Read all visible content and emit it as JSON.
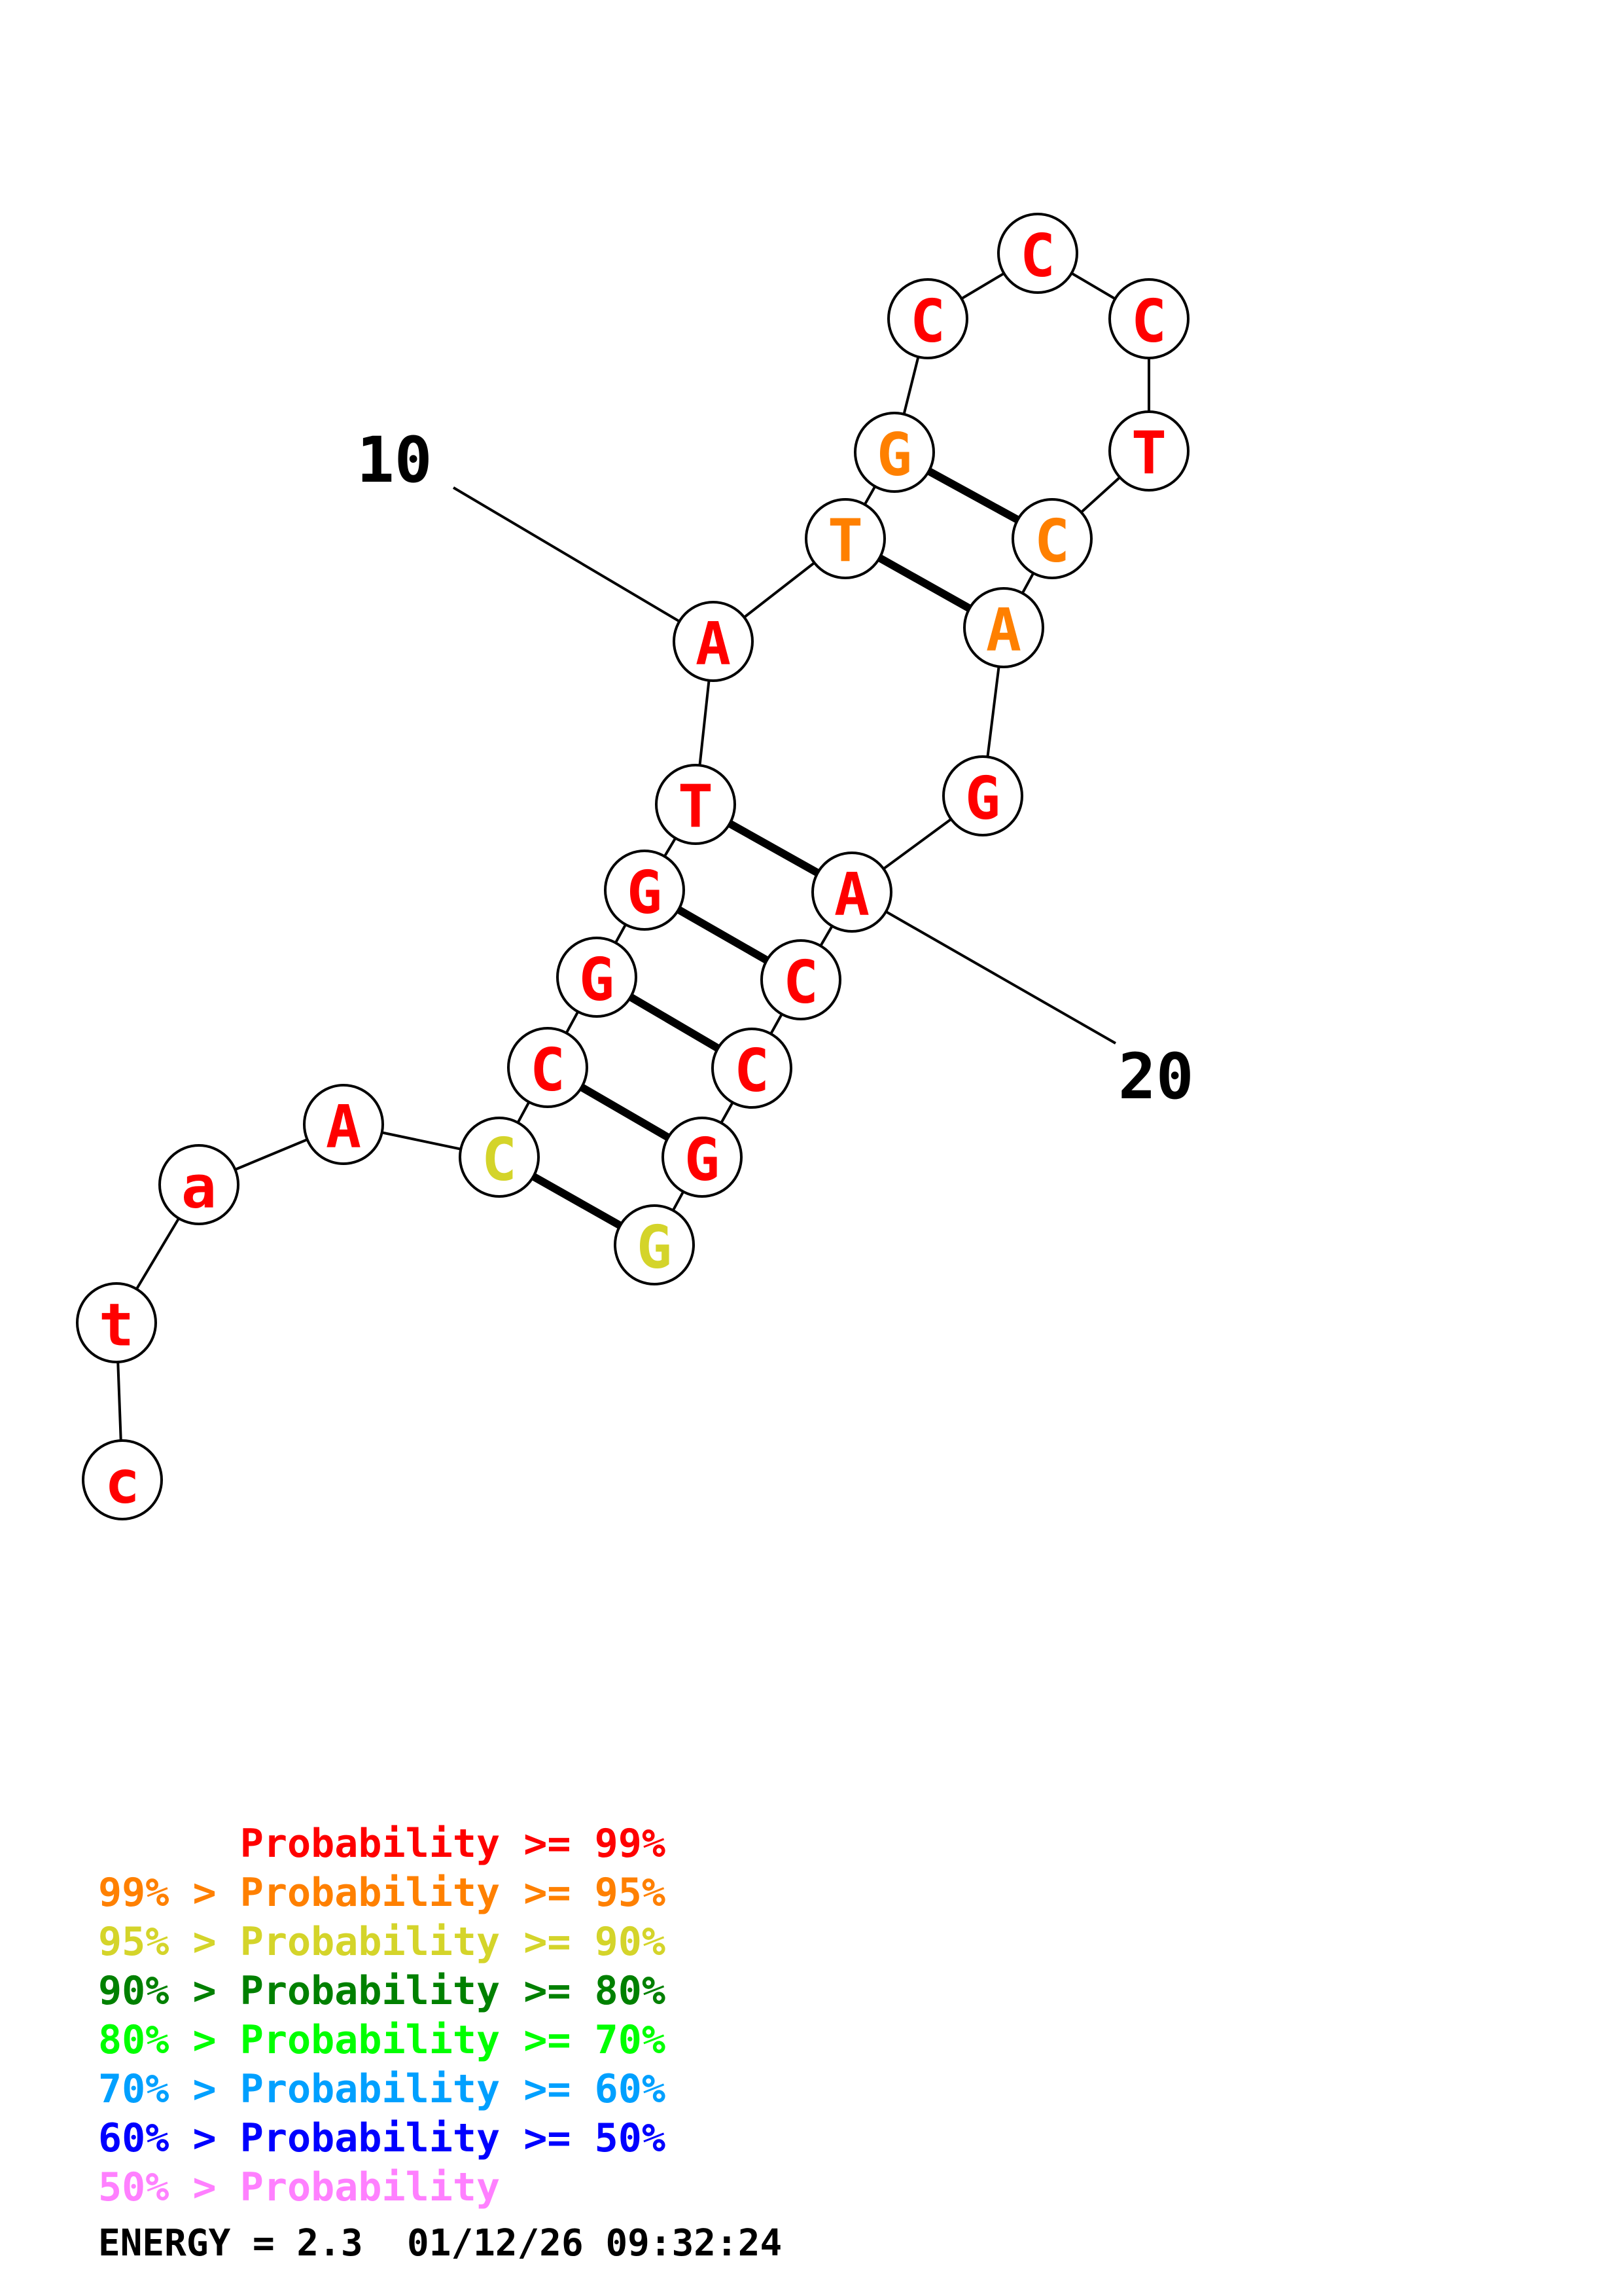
{
  "nucleotides": [
    {
      "label": "c",
      "color": "#ff0000"
    },
    {
      "label": "t",
      "color": "#ff0000"
    },
    {
      "label": "a",
      "color": "#ff0000"
    },
    {
      "label": "A",
      "color": "#ff0000"
    },
    {
      "label": "C",
      "color": "#d4d42a"
    },
    {
      "label": "C",
      "color": "#ff0000"
    },
    {
      "label": "G",
      "color": "#ff0000"
    },
    {
      "label": "G",
      "color": "#ff0000"
    },
    {
      "label": "T",
      "color": "#ff0000"
    },
    {
      "label": "A",
      "color": "#ff0000"
    },
    {
      "label": "T",
      "color": "#ff8000"
    },
    {
      "label": "G",
      "color": "#ff8000"
    },
    {
      "label": "C",
      "color": "#ff0000"
    },
    {
      "label": "C",
      "color": "#ff0000"
    },
    {
      "label": "C",
      "color": "#ff0000"
    },
    {
      "label": "T",
      "color": "#ff0000"
    },
    {
      "label": "C",
      "color": "#ff8000"
    },
    {
      "label": "A",
      "color": "#ff8000"
    },
    {
      "label": "G",
      "color": "#ff0000"
    },
    {
      "label": "A",
      "color": "#ff0000"
    },
    {
      "label": "C",
      "color": "#ff0000"
    },
    {
      "label": "C",
      "color": "#ff0000"
    },
    {
      "label": "G",
      "color": "#ff0000"
    },
    {
      "label": "G",
      "color": "#d4d42a"
    }
  ],
  "base_pairs": [
    [
      5,
      24
    ],
    [
      6,
      23
    ],
    [
      7,
      22
    ],
    [
      8,
      21
    ],
    [
      9,
      20
    ],
    [
      11,
      18
    ],
    [
      12,
      17
    ]
  ],
  "position_labels": [
    {
      "text": "10",
      "nucleotide": 10
    },
    {
      "text": "20",
      "nucleotide": 20
    }
  ],
  "legend": [
    {
      "text": "      Probability >= 99%",
      "color": "#ff0000"
    },
    {
      "text": "99% > Probability >= 95%",
      "color": "#ff8000"
    },
    {
      "text": "95% > Probability >= 90%",
      "color": "#d4d42a"
    },
    {
      "text": "90% > Probability >= 80%",
      "color": "#008000"
    },
    {
      "text": "80% > Probability >= 70%",
      "color": "#00ff00"
    },
    {
      "text": "70% > Probability >= 60%",
      "color": "#00a0ff"
    },
    {
      "text": "60% > Probability >= 50%",
      "color": "#0000ff"
    },
    {
      "text": "50% > Probability",
      "color": "#ff80ff"
    }
  ],
  "footer": {
    "energy_text": "ENERGY = 2.3  01/12/26 09:32:24"
  }
}
